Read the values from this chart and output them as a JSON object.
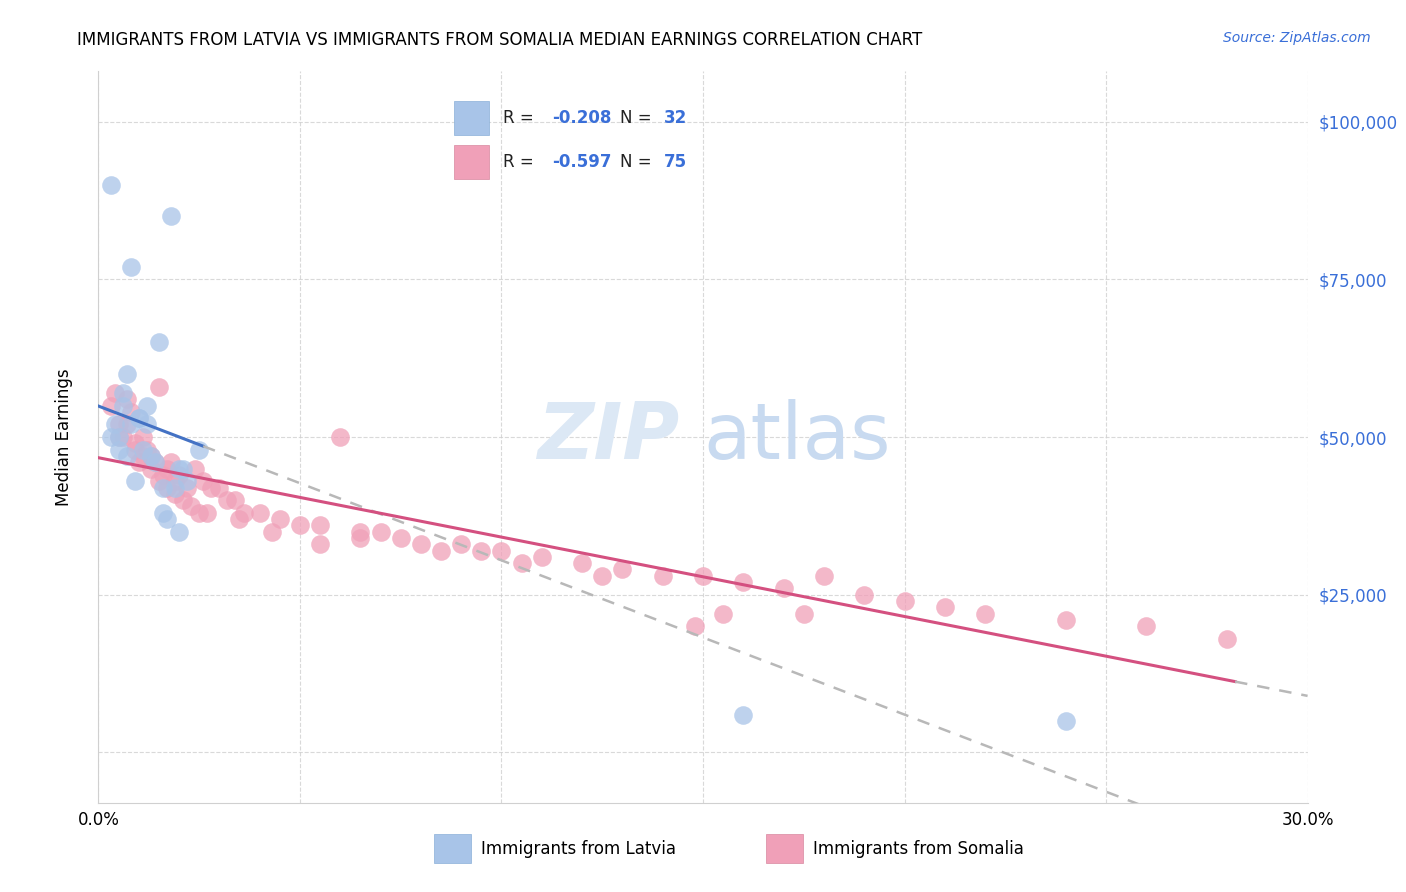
{
  "title": "IMMIGRANTS FROM LATVIA VS IMMIGRANTS FROM SOMALIA MEDIAN EARNINGS CORRELATION CHART",
  "source": "Source: ZipAtlas.com",
  "ylabel": "Median Earnings",
  "xlim": [
    0.0,
    0.3
  ],
  "ylim": [
    -8000,
    108000
  ],
  "yticks": [
    0,
    25000,
    50000,
    75000,
    100000
  ],
  "ytick_labels": [
    "",
    "$25,000",
    "$50,000",
    "$75,000",
    "$100,000"
  ],
  "watermark_zip": "ZIP",
  "watermark_atlas": "atlas",
  "legend_r1": "R = -0.208",
  "legend_n1": "N = 32",
  "legend_r2": "R = -0.597",
  "legend_n2": "N = 75",
  "latvia_color": "#a8c4e8",
  "somalia_color": "#f0a0b8",
  "latvia_line_color": "#4472c4",
  "somalia_line_color": "#d45080",
  "extend_line_color": "#b8b8b8",
  "latvia_x": [
    0.003,
    0.004,
    0.005,
    0.006,
    0.007,
    0.008,
    0.009,
    0.01,
    0.011,
    0.012,
    0.013,
    0.014,
    0.015,
    0.016,
    0.017,
    0.018,
    0.019,
    0.02,
    0.021,
    0.022,
    0.003,
    0.005,
    0.006,
    0.007,
    0.008,
    0.01,
    0.012,
    0.016,
    0.02,
    0.025,
    0.24,
    0.16
  ],
  "latvia_y": [
    90000,
    52000,
    50000,
    57000,
    60000,
    77000,
    43000,
    53000,
    48000,
    55000,
    47000,
    46000,
    65000,
    38000,
    37000,
    85000,
    42000,
    45000,
    45000,
    43000,
    50000,
    48000,
    55000,
    47000,
    52000,
    53000,
    52000,
    42000,
    35000,
    48000,
    5000,
    6000
  ],
  "somalia_x": [
    0.003,
    0.004,
    0.005,
    0.006,
    0.007,
    0.008,
    0.009,
    0.01,
    0.011,
    0.012,
    0.013,
    0.014,
    0.015,
    0.016,
    0.017,
    0.018,
    0.019,
    0.02,
    0.022,
    0.024,
    0.026,
    0.028,
    0.03,
    0.032,
    0.034,
    0.036,
    0.04,
    0.045,
    0.05,
    0.055,
    0.06,
    0.065,
    0.07,
    0.075,
    0.08,
    0.09,
    0.1,
    0.11,
    0.12,
    0.13,
    0.14,
    0.15,
    0.16,
    0.17,
    0.18,
    0.19,
    0.2,
    0.21,
    0.22,
    0.24,
    0.26,
    0.28,
    0.005,
    0.007,
    0.009,
    0.011,
    0.013,
    0.015,
    0.017,
    0.019,
    0.021,
    0.023,
    0.025,
    0.027,
    0.035,
    0.043,
    0.055,
    0.148,
    0.175,
    0.125,
    0.095,
    0.105,
    0.065,
    0.085,
    0.155
  ],
  "somalia_y": [
    55000,
    57000,
    52000,
    50000,
    56000,
    54000,
    48000,
    46000,
    50000,
    48000,
    47000,
    46000,
    58000,
    44000,
    45000,
    46000,
    43000,
    44000,
    42000,
    45000,
    43000,
    42000,
    42000,
    40000,
    40000,
    38000,
    38000,
    37000,
    36000,
    36000,
    50000,
    35000,
    35000,
    34000,
    33000,
    33000,
    32000,
    31000,
    30000,
    29000,
    28000,
    28000,
    27000,
    26000,
    28000,
    25000,
    24000,
    23000,
    22000,
    21000,
    20000,
    18000,
    50000,
    52000,
    49000,
    47000,
    45000,
    43000,
    42000,
    41000,
    40000,
    39000,
    38000,
    38000,
    37000,
    35000,
    33000,
    20000,
    22000,
    28000,
    32000,
    30000,
    34000,
    32000,
    22000
  ]
}
